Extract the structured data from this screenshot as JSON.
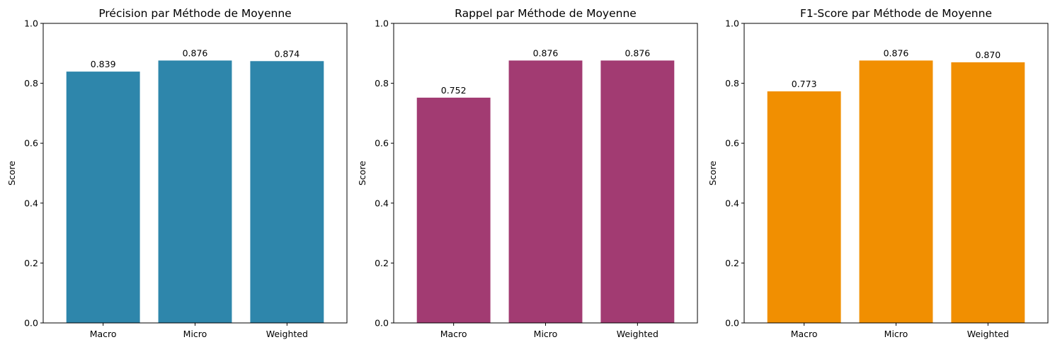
{
  "chart_data": [
    {
      "type": "bar",
      "title": "Précision par Méthode de Moyenne",
      "xlabel": "",
      "ylabel": "Score",
      "categories": [
        "Macro",
        "Micro",
        "Weighted"
      ],
      "values": [
        0.839,
        0.876,
        0.874
      ],
      "value_labels": [
        "0.839",
        "0.876",
        "0.874"
      ],
      "ylim": [
        0,
        1
      ],
      "yticks": [
        "0.0",
        "0.2",
        "0.4",
        "0.6",
        "0.8",
        "1.0"
      ],
      "color": "#2e86ab",
      "grid": false,
      "legend": "none"
    },
    {
      "type": "bar",
      "title": "Rappel par Méthode de Moyenne",
      "xlabel": "",
      "ylabel": "Score",
      "categories": [
        "Macro",
        "Micro",
        "Weighted"
      ],
      "values": [
        0.752,
        0.876,
        0.876
      ],
      "value_labels": [
        "0.752",
        "0.876",
        "0.876"
      ],
      "ylim": [
        0,
        1
      ],
      "yticks": [
        "0.0",
        "0.2",
        "0.4",
        "0.6",
        "0.8",
        "1.0"
      ],
      "color": "#a23b72",
      "grid": false,
      "legend": "none"
    },
    {
      "type": "bar",
      "title": "F1-Score par Méthode de Moyenne",
      "xlabel": "",
      "ylabel": "Score",
      "categories": [
        "Macro",
        "Micro",
        "Weighted"
      ],
      "values": [
        0.773,
        0.876,
        0.87
      ],
      "value_labels": [
        "0.773",
        "0.876",
        "0.870"
      ],
      "ylim": [
        0,
        1
      ],
      "yticks": [
        "0.0",
        "0.2",
        "0.4",
        "0.6",
        "0.8",
        "1.0"
      ],
      "color": "#f18f01",
      "grid": false,
      "legend": "none"
    }
  ]
}
